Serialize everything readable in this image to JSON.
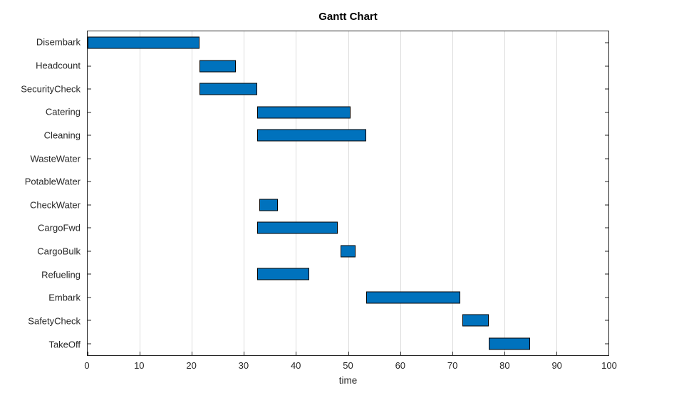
{
  "figure": {
    "background": "#ffffff"
  },
  "chart_data": {
    "type": "bar",
    "subtype": "gantt",
    "orientation": "horizontal",
    "title": "Gantt Chart",
    "xlabel": "time",
    "ylabel": "",
    "xlim": [
      0,
      100
    ],
    "xticks": [
      0,
      10,
      20,
      30,
      40,
      50,
      60,
      70,
      80,
      90,
      100
    ],
    "grid": "vertical",
    "legend": "none",
    "bar_color": "#0072BD",
    "bar_edge_color": "#000000",
    "categories": [
      "Disembark",
      "Headcount",
      "SecurityCheck",
      "Catering",
      "Cleaning",
      "WasteWater",
      "PotableWater",
      "CheckWater",
      "CargoFwd",
      "CargoBulk",
      "Refueling",
      "Embark",
      "SafetyCheck",
      "TakeOff"
    ],
    "tasks": [
      {
        "name": "Disembark",
        "start": 0,
        "end": 21.5
      },
      {
        "name": "Headcount",
        "start": 21.5,
        "end": 28.5
      },
      {
        "name": "SecurityCheck",
        "start": 21.5,
        "end": 32.5
      },
      {
        "name": "Catering",
        "start": 32.5,
        "end": 50.5
      },
      {
        "name": "Cleaning",
        "start": 32.5,
        "end": 53.5
      },
      {
        "name": "WasteWater",
        "start": null,
        "end": null
      },
      {
        "name": "PotableWater",
        "start": null,
        "end": null
      },
      {
        "name": "CheckWater",
        "start": 33,
        "end": 36.5
      },
      {
        "name": "CargoFwd",
        "start": 32.5,
        "end": 48
      },
      {
        "name": "CargoBulk",
        "start": 48.5,
        "end": 51.5
      },
      {
        "name": "Refueling",
        "start": 32.5,
        "end": 42.5
      },
      {
        "name": "Embark",
        "start": 53.5,
        "end": 71.5
      },
      {
        "name": "SafetyCheck",
        "start": 72,
        "end": 77
      },
      {
        "name": "TakeOff",
        "start": 77,
        "end": 85
      }
    ]
  }
}
